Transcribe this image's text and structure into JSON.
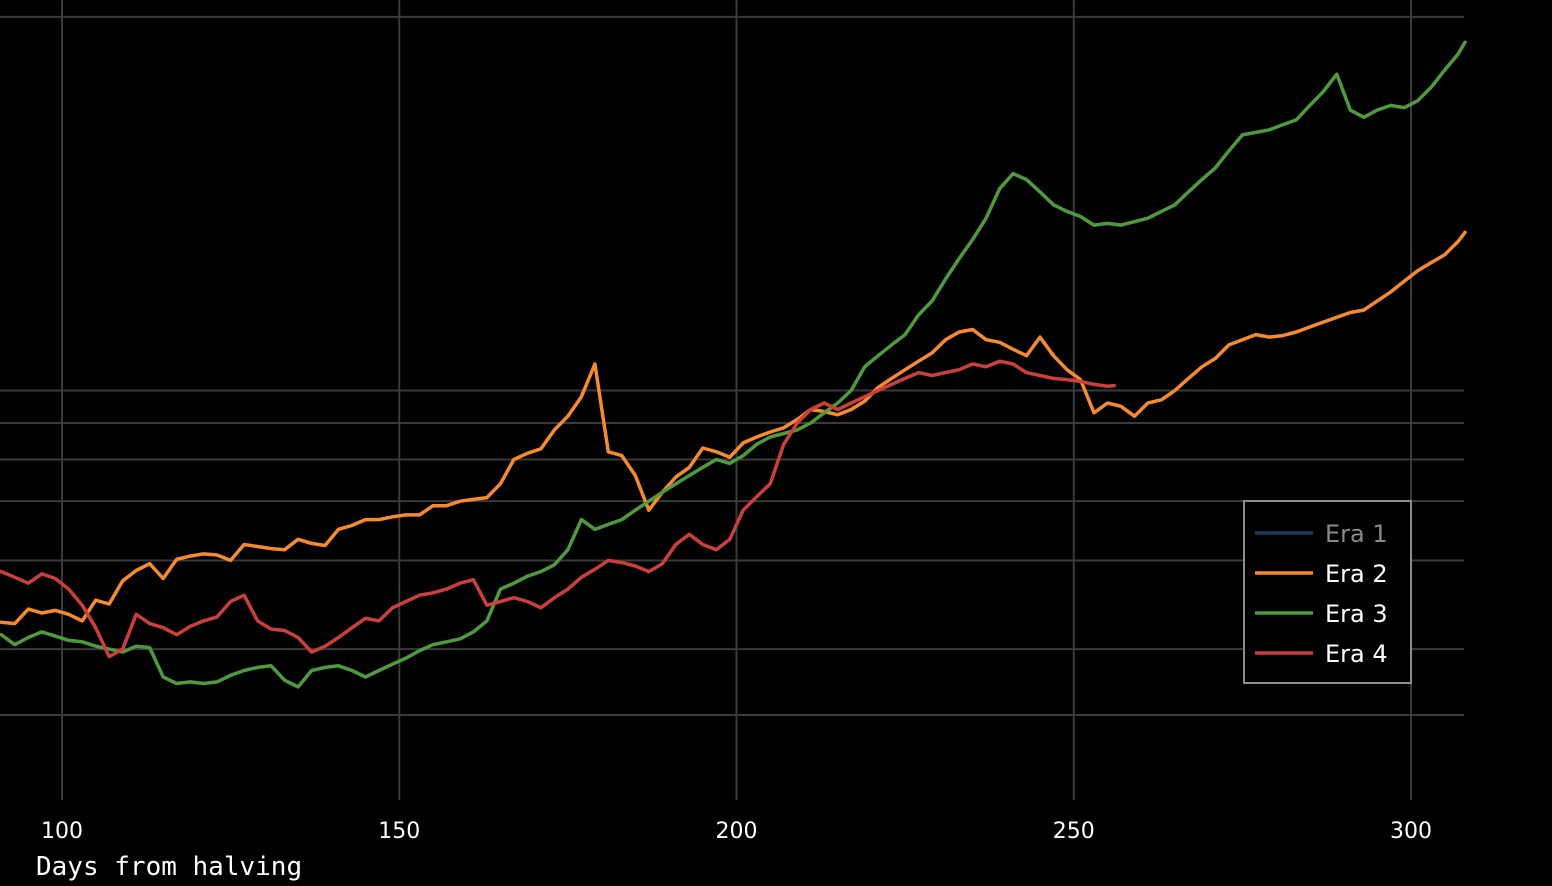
{
  "chart_data": {
    "type": "line",
    "xlabel": "Days from halving",
    "xlim": [
      91,
      308
    ],
    "ylim": [
      0,
      100
    ],
    "y_scale": "log",
    "grid": true,
    "x_ticks": [
      100,
      150,
      200,
      250,
      300
    ],
    "legend_position": "bottom-right",
    "colors": {
      "background": "#000000",
      "grid": "#3a3a3a",
      "legend_border": "#8c8c8c",
      "legend_text": "#ffffff",
      "legend_text_inactive": "#8a8a8a"
    },
    "series": [
      {
        "name": "Era 1",
        "color": "#1f3a5f",
        "visible": false,
        "x": [],
        "y": []
      },
      {
        "name": "Era 2",
        "color": "#f58a30",
        "visible": true,
        "x": [
          91,
          93,
          95,
          97,
          99,
          101,
          103,
          105,
          107,
          109,
          111,
          113,
          115,
          117,
          119,
          121,
          123,
          125,
          127,
          129,
          131,
          133,
          135,
          137,
          139,
          141,
          143,
          145,
          147,
          149,
          151,
          153,
          155,
          157,
          159,
          161,
          163,
          165,
          167,
          169,
          171,
          173,
          175,
          177,
          179,
          181,
          183,
          185,
          187,
          189,
          191,
          193,
          195,
          197,
          199,
          201,
          203,
          205,
          207,
          209,
          211,
          213,
          215,
          217,
          219,
          221,
          223,
          225,
          227,
          229,
          231,
          233,
          235,
          237,
          239,
          241,
          243,
          245,
          247,
          249,
          251,
          253,
          255,
          257,
          259,
          261,
          263,
          265,
          267,
          269,
          271,
          273,
          275,
          277,
          279,
          281,
          283,
          285,
          287,
          289,
          291,
          293,
          295,
          297,
          299,
          301,
          303,
          305,
          307,
          308
        ],
        "y": [
          21.9,
          21.8,
          22.9,
          22.6,
          22.8,
          22.5,
          22.0,
          23.6,
          23.3,
          25.2,
          26.1,
          26.7,
          25.4,
          27.1,
          27.4,
          27.6,
          27.5,
          27.0,
          28.5,
          28.3,
          28.1,
          28.0,
          29.0,
          28.6,
          28.4,
          30.0,
          30.4,
          31.0,
          31.0,
          31.3,
          31.5,
          31.5,
          32.5,
          32.5,
          33.0,
          33.2,
          33.4,
          35.0,
          38.0,
          38.8,
          39.4,
          42.0,
          44.0,
          47.0,
          52.5,
          39.0,
          38.5,
          36.0,
          32.0,
          34.0,
          35.8,
          37.0,
          39.5,
          39.0,
          38.3,
          40.2,
          41.0,
          41.7,
          42.3,
          43.5,
          45.0,
          44.7,
          44.2,
          45.0,
          46.3,
          48.5,
          50.0,
          51.5,
          53.0,
          54.5,
          57.0,
          58.5,
          59.0,
          57.0,
          56.5,
          55.2,
          54.0,
          57.5,
          54.0,
          51.5,
          49.8,
          44.5,
          46.0,
          45.5,
          44.0,
          46.0,
          46.5,
          48.0,
          50.0,
          52.0,
          53.5,
          56.0,
          57.0,
          58.0,
          57.5,
          57.8,
          58.5,
          59.5,
          60.5,
          61.5,
          62.5,
          63.0,
          65.0,
          67.0,
          69.5,
          72.0,
          74.0,
          76.0,
          79.5,
          82.0
        ]
      },
      {
        "name": "Era 3",
        "color": "#4f9a3f",
        "visible": true,
        "x": [
          91,
          93,
          95,
          97,
          99,
          101,
          103,
          105,
          107,
          109,
          111,
          113,
          115,
          117,
          119,
          121,
          123,
          125,
          127,
          129,
          131,
          133,
          135,
          137,
          139,
          141,
          143,
          145,
          147,
          149,
          151,
          153,
          155,
          157,
          159,
          161,
          163,
          165,
          167,
          169,
          171,
          173,
          175,
          177,
          179,
          181,
          183,
          185,
          187,
          189,
          191,
          193,
          195,
          197,
          199,
          201,
          203,
          205,
          207,
          209,
          211,
          213,
          215,
          217,
          219,
          221,
          223,
          225,
          227,
          229,
          231,
          233,
          235,
          237,
          239,
          241,
          243,
          245,
          247,
          249,
          251,
          253,
          255,
          257,
          259,
          261,
          263,
          265,
          267,
          269,
          271,
          273,
          275,
          277,
          279,
          281,
          283,
          285,
          287,
          289,
          291,
          293,
          295,
          297,
          299,
          301,
          303,
          305,
          307,
          308
        ],
        "y": [
          21.0,
          20.3,
          20.8,
          21.2,
          20.9,
          20.6,
          20.5,
          20.2,
          20.0,
          19.8,
          20.2,
          20.1,
          18.2,
          17.8,
          17.9,
          17.8,
          17.9,
          18.3,
          18.6,
          18.8,
          18.9,
          18.0,
          17.6,
          18.6,
          18.8,
          18.9,
          18.6,
          18.2,
          18.6,
          19.0,
          19.4,
          19.9,
          20.3,
          20.5,
          20.7,
          21.2,
          22.0,
          24.5,
          25.0,
          25.6,
          26.0,
          26.6,
          28.0,
          31.0,
          30.0,
          30.5,
          31.0,
          32.0,
          33.0,
          34.0,
          35.0,
          36.0,
          37.0,
          38.0,
          37.5,
          38.5,
          40.0,
          41.0,
          41.5,
          42.0,
          43.0,
          44.5,
          46.0,
          48.0,
          52.0,
          54.0,
          56.0,
          58.0,
          62.0,
          65.0,
          70.0,
          75.0,
          80.0,
          86.0,
          95.0,
          100.0,
          98.0,
          94.0,
          90.0,
          88.0,
          86.5,
          84.0,
          84.5,
          84.0,
          85.0,
          86.0,
          88.0,
          90.0,
          94.0,
          98.0,
          102.0,
          108.0,
          114.0,
          115.0,
          116.0,
          118.0,
          120.0,
          126.0,
          132.0,
          140.0,
          124.0,
          121.0,
          124.0,
          126.0,
          125.0,
          128.0,
          134.0,
          142.0,
          150.0,
          156.0
        ]
      },
      {
        "name": "Era 4",
        "color": "#cc3f3a",
        "visible": true,
        "x": [
          91,
          93,
          95,
          97,
          99,
          101,
          103,
          105,
          107,
          109,
          111,
          113,
          115,
          117,
          119,
          121,
          123,
          125,
          127,
          129,
          131,
          133,
          135,
          137,
          139,
          141,
          143,
          145,
          147,
          149,
          151,
          153,
          155,
          157,
          159,
          161,
          163,
          165,
          167,
          169,
          171,
          173,
          175,
          177,
          179,
          181,
          183,
          185,
          187,
          189,
          191,
          193,
          195,
          197,
          199,
          201,
          203,
          205,
          207,
          209,
          211,
          213,
          215,
          217,
          219,
          221,
          223,
          225,
          227,
          229,
          231,
          233,
          235,
          237,
          239,
          241,
          243,
          245,
          247,
          249,
          251,
          253,
          255,
          256
        ],
        "y": [
          26.0,
          25.5,
          25.0,
          25.8,
          25.4,
          24.5,
          23.2,
          21.5,
          19.5,
          20.0,
          22.5,
          21.8,
          21.5,
          21.0,
          21.6,
          22.0,
          22.3,
          23.5,
          24.0,
          22.0,
          21.4,
          21.3,
          20.8,
          19.8,
          20.2,
          20.8,
          21.5,
          22.2,
          22.0,
          23.0,
          23.5,
          24.0,
          24.2,
          24.5,
          25.0,
          25.3,
          23.2,
          23.5,
          23.8,
          23.5,
          23.0,
          23.8,
          24.5,
          25.5,
          26.2,
          27.0,
          26.8,
          26.5,
          26.0,
          26.7,
          28.5,
          29.5,
          28.5,
          28.0,
          29.0,
          32.0,
          33.5,
          35.0,
          40.0,
          43.0,
          45.0,
          46.0,
          45.0,
          46.0,
          47.0,
          48.0,
          49.0,
          50.0,
          51.0,
          50.5,
          51.0,
          51.5,
          52.5,
          52.0,
          53.0,
          52.5,
          51.0,
          50.5,
          50.0,
          49.8,
          49.5,
          49.0,
          48.7,
          48.8
        ]
      }
    ]
  }
}
